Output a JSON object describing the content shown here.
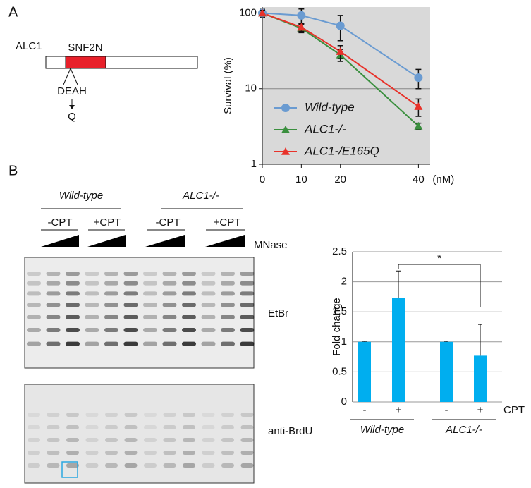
{
  "chart_data": [
    {
      "type": "line",
      "y_label": "Survival (%)",
      "x_unit": "(nM)",
      "x": [
        0,
        10,
        20,
        40
      ],
      "xlim": [
        0,
        43
      ],
      "xticks": [
        0,
        10,
        20,
        40
      ],
      "ylim": [
        1,
        120
      ],
      "yticks": [
        1,
        10,
        100
      ],
      "log_y": true,
      "grid": true,
      "background": "#d9d9d9",
      "legend": "bottom-left",
      "series": [
        {
          "name": "Wild-type",
          "color": "#6a9bd1",
          "marker": "circle",
          "values": [
            100,
            93,
            68,
            14
          ],
          "errors": [
            12,
            20,
            25,
            4
          ]
        },
        {
          "name": "ALC1-/-",
          "color": "#3a8f3e",
          "marker": "triangle",
          "values": [
            100,
            63,
            28,
            3.2
          ],
          "errors": [
            8,
            8,
            5,
            0.3
          ]
        },
        {
          "name": "ALC1-/E165Q",
          "color": "#e8322a",
          "marker": "triangle",
          "values": [
            100,
            65,
            31,
            5.8
          ],
          "errors": [
            8,
            8,
            6,
            1.5
          ]
        }
      ]
    },
    {
      "type": "bar",
      "y_label": "Fold change",
      "categories": [
        "-",
        "+",
        "-",
        "+"
      ],
      "category_axis_label": "CPT",
      "values": [
        1,
        1.73,
        1,
        0.77
      ],
      "errors": [
        0.01,
        0.45,
        0.01,
        0.52
      ],
      "color": "#00aeef",
      "ylim": [
        0,
        2.5
      ],
      "yticks": [
        0,
        0.5,
        1,
        1.5,
        2,
        2.5
      ],
      "grid": true,
      "groups": [
        "Wild-type",
        "ALC1-/-"
      ],
      "significance": "*"
    }
  ],
  "panels": [
    "A",
    "B"
  ],
  "diagram": {
    "protein": "ALC1",
    "domain": "SNF2N",
    "motif": "DEAH",
    "mutant": "Q"
  },
  "gel": {
    "genotypes": [
      "Wild-type",
      "ALC1-/-"
    ],
    "treatments": [
      "-CPT",
      "+CPT",
      "-CPT",
      "+CPT"
    ],
    "enzyme": "MNase",
    "stains": [
      "EtBr",
      "anti-BrdU"
    ]
  }
}
